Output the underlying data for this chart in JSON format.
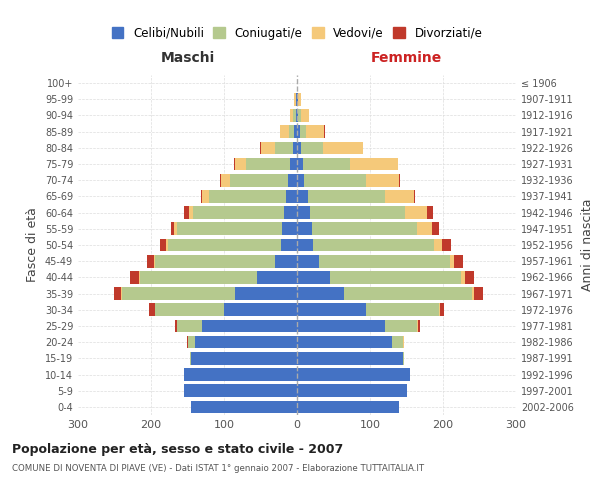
{
  "age_groups": [
    "0-4",
    "5-9",
    "10-14",
    "15-19",
    "20-24",
    "25-29",
    "30-34",
    "35-39",
    "40-44",
    "45-49",
    "50-54",
    "55-59",
    "60-64",
    "65-69",
    "70-74",
    "75-79",
    "80-84",
    "85-89",
    "90-94",
    "95-99",
    "100+"
  ],
  "birth_years": [
    "2002-2006",
    "1997-2001",
    "1992-1996",
    "1987-1991",
    "1982-1986",
    "1977-1981",
    "1972-1976",
    "1967-1971",
    "1962-1966",
    "1957-1961",
    "1952-1956",
    "1947-1951",
    "1942-1946",
    "1937-1941",
    "1932-1936",
    "1927-1931",
    "1922-1926",
    "1917-1921",
    "1912-1916",
    "1907-1911",
    "≤ 1906"
  ],
  "maschi": {
    "celibi": [
      145,
      155,
      155,
      145,
      140,
      130,
      100,
      85,
      55,
      30,
      22,
      20,
      18,
      15,
      12,
      10,
      5,
      4,
      2,
      1,
      0
    ],
    "coniugati": [
      0,
      0,
      0,
      2,
      10,
      35,
      95,
      155,
      160,
      165,
      155,
      145,
      125,
      105,
      80,
      60,
      25,
      7,
      3,
      1,
      0
    ],
    "vedovi": [
      0,
      0,
      0,
      0,
      0,
      0,
      0,
      1,
      1,
      1,
      2,
      3,
      5,
      10,
      12,
      15,
      20,
      12,
      5,
      2,
      0
    ],
    "divorziati": [
      0,
      0,
      0,
      0,
      1,
      2,
      8,
      10,
      13,
      10,
      8,
      5,
      7,
      2,
      1,
      1,
      1,
      0,
      0,
      0,
      0
    ]
  },
  "femmine": {
    "nubili": [
      140,
      150,
      155,
      145,
      130,
      120,
      95,
      65,
      45,
      30,
      22,
      20,
      18,
      15,
      10,
      8,
      5,
      4,
      2,
      1,
      0
    ],
    "coniugate": [
      0,
      0,
      0,
      2,
      15,
      45,
      100,
      175,
      180,
      180,
      165,
      145,
      130,
      105,
      85,
      65,
      30,
      8,
      3,
      1,
      0
    ],
    "vedove": [
      0,
      0,
      0,
      0,
      1,
      1,
      1,
      3,
      5,
      5,
      12,
      20,
      30,
      40,
      45,
      65,
      55,
      25,
      12,
      3,
      0
    ],
    "divorziate": [
      0,
      0,
      0,
      0,
      1,
      2,
      5,
      12,
      12,
      12,
      12,
      10,
      8,
      2,
      1,
      1,
      1,
      1,
      0,
      0,
      0
    ]
  },
  "colors": {
    "celibi": "#4472c4",
    "coniugati": "#b5c98e",
    "vedovi": "#f5c97a",
    "divorziati": "#c0392b"
  },
  "title1": "Popolazione per età, sesso e stato civile - 2007",
  "title2": "COMUNE DI NOVENTA DI PIAVE (VE) - Dati ISTAT 1° gennaio 2007 - Elaborazione TUTTAITALIA.IT",
  "xlim": 300,
  "legend_labels": [
    "Celibi/Nubili",
    "Coniugati/e",
    "Vedovi/e",
    "Divorziati/e"
  ]
}
